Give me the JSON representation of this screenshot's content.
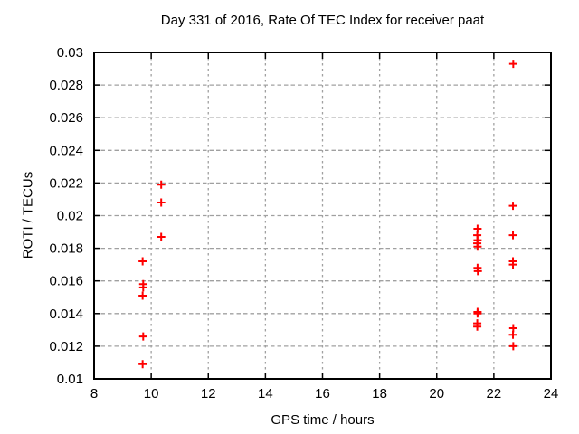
{
  "chart_data": {
    "type": "scatter",
    "title": "Day 331 of 2016, Rate Of TEC Index for receiver paat",
    "xlabel": "GPS time / hours",
    "ylabel": "ROTI / TECUs",
    "xlim": [
      8,
      24
    ],
    "ylim": [
      0.01,
      0.03
    ],
    "xticks": [
      8,
      10,
      12,
      14,
      16,
      18,
      20,
      22,
      24
    ],
    "xtick_labels": [
      "8",
      "10",
      "12",
      "14",
      "16",
      "18",
      "20",
      "22",
      "24"
    ],
    "yticks": [
      0.01,
      0.012,
      0.014,
      0.016,
      0.018,
      0.02,
      0.022,
      0.024,
      0.026,
      0.028,
      0.03
    ],
    "ytick_labels": [
      "0.01",
      "0.012",
      "0.014",
      "0.016",
      "0.018",
      "0.02",
      "0.022",
      "0.024",
      "0.026",
      "0.028",
      "0.03"
    ],
    "grid": true,
    "legend": "none",
    "marker": "plus",
    "colors": {
      "marker": "#ff0000",
      "grid": "#a0a0a0",
      "border": "#000000",
      "background": "#ffffff"
    },
    "series": [
      {
        "name": "ROTI",
        "points": [
          [
            9.7,
            0.0172
          ],
          [
            9.72,
            0.0158
          ],
          [
            9.72,
            0.0156
          ],
          [
            9.7,
            0.0151
          ],
          [
            9.72,
            0.0126
          ],
          [
            9.7,
            0.0109
          ],
          [
            10.35,
            0.0219
          ],
          [
            10.35,
            0.0208
          ],
          [
            10.35,
            0.0187
          ],
          [
            21.43,
            0.0192
          ],
          [
            21.42,
            0.0188
          ],
          [
            21.43,
            0.0185
          ],
          [
            21.42,
            0.0183
          ],
          [
            21.43,
            0.0181
          ],
          [
            21.43,
            0.0168
          ],
          [
            21.44,
            0.0166
          ],
          [
            21.43,
            0.0141
          ],
          [
            21.43,
            0.014
          ],
          [
            21.42,
            0.0134
          ],
          [
            21.42,
            0.0132
          ],
          [
            22.68,
            0.0293
          ],
          [
            22.67,
            0.0206
          ],
          [
            22.67,
            0.0188
          ],
          [
            22.67,
            0.0172
          ],
          [
            22.67,
            0.017
          ],
          [
            22.68,
            0.0131
          ],
          [
            22.67,
            0.0127
          ],
          [
            22.68,
            0.012
          ]
        ]
      }
    ]
  }
}
